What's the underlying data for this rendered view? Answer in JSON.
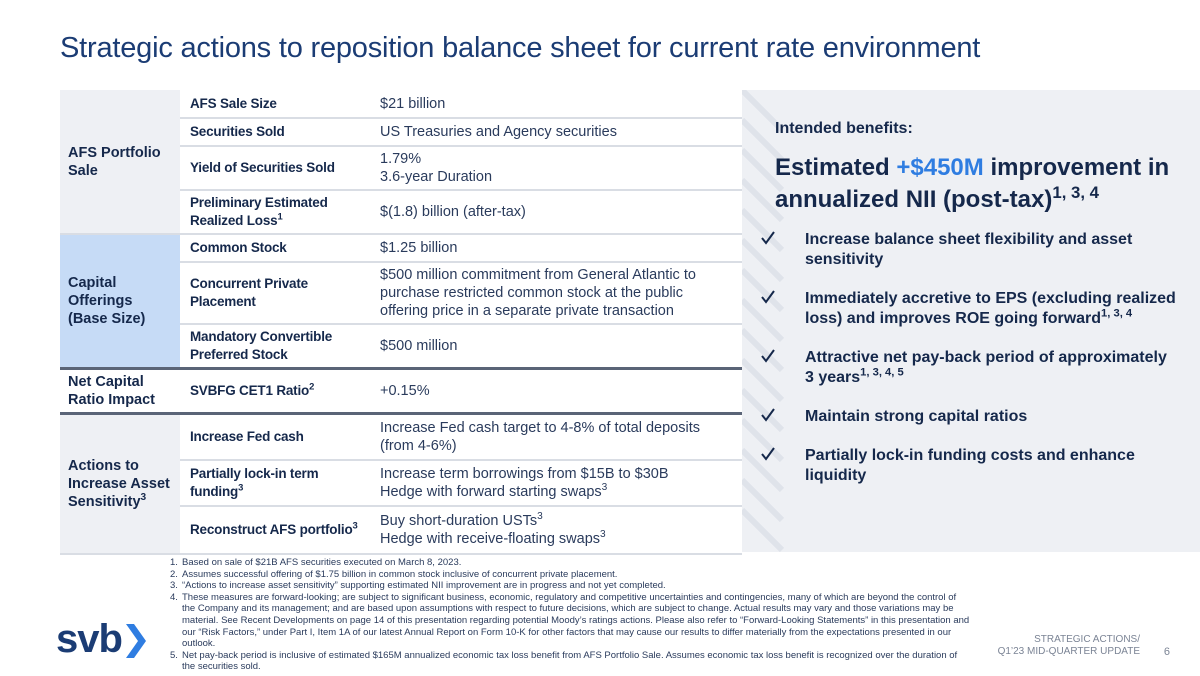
{
  "title": "Strategic actions to reposition balance sheet for current rate environment",
  "table": {
    "groups": [
      {
        "label": [
          {
            "text": "AFS Portfolio Sale"
          }
        ],
        "rows": [
          {
            "label": [
              {
                "text": "AFS Sale Size"
              }
            ],
            "value": [
              [
                {
                  "text": "$21 billion"
                }
              ]
            ]
          },
          {
            "label": [
              {
                "text": "Securities Sold"
              }
            ],
            "value": [
              [
                {
                  "text": "US Treasuries and Agency securities"
                }
              ]
            ]
          },
          {
            "label": [
              {
                "text": "Yield of Securities Sold"
              }
            ],
            "value": [
              [
                {
                  "text": "1.79%"
                }
              ],
              [
                {
                  "text": "3.6-year Duration"
                }
              ]
            ]
          },
          {
            "label": [
              {
                "text": "Preliminary Estimated Realized Loss"
              },
              {
                "sup": "1"
              }
            ],
            "value": [
              [
                {
                  "text": "$(1.8) billion (after-tax)"
                }
              ]
            ]
          }
        ]
      },
      {
        "label": [
          {
            "text": "Capital Offerings (Base Size)"
          }
        ],
        "rows": [
          {
            "label": [
              {
                "text": "Common Stock"
              }
            ],
            "value": [
              [
                {
                  "text": "$1.25 billion"
                }
              ]
            ]
          },
          {
            "label": [
              {
                "text": "Concurrent Private Placement"
              }
            ],
            "value": [
              [
                {
                  "text": "$500 million commitment from General Atlantic to purchase restricted common stock at the public offering price in a separate private transaction"
                }
              ]
            ]
          },
          {
            "label": [
              {
                "text": "Mandatory Convertible Preferred Stock"
              }
            ],
            "value": [
              [
                {
                  "text": "$500 million"
                }
              ]
            ]
          }
        ]
      },
      {
        "label": [
          {
            "text": "Net Capital Ratio Impact"
          }
        ],
        "rows": [
          {
            "label": [
              {
                "text": "SVBFG CET1 Ratio"
              },
              {
                "sup": "2"
              }
            ],
            "value": [
              [
                {
                  "text": "+0.15%"
                }
              ]
            ]
          }
        ]
      },
      {
        "label": [
          {
            "text": "Actions to Increase Asset Sensitivity"
          },
          {
            "sup": "3"
          }
        ],
        "rows": [
          {
            "label": [
              {
                "text": "Increase Fed cash"
              }
            ],
            "value": [
              [
                {
                  "text": "Increase Fed cash target to 4-8% of total deposits (from 4-6%)"
                }
              ]
            ]
          },
          {
            "label": [
              {
                "text": "Partially lock-in term funding"
              },
              {
                "sup": "3"
              }
            ],
            "value": [
              [
                {
                  "text": "Increase term borrowings from $15B to $30B"
                }
              ],
              [
                {
                  "text": "Hedge with forward starting swaps"
                },
                {
                  "sup": "3"
                }
              ]
            ]
          },
          {
            "label": [
              {
                "text": "Reconstruct AFS portfolio"
              },
              {
                "sup": "3"
              }
            ],
            "value": [
              [
                {
                  "text": "Buy short-duration USTs"
                },
                {
                  "sup": "3"
                }
              ],
              [
                {
                  "text": "Hedge with receive-floating swaps"
                },
                {
                  "sup": "3"
                }
              ]
            ]
          }
        ]
      }
    ]
  },
  "benefits": {
    "heading": "Intended benefits:",
    "headline": [
      {
        "text": "Estimated "
      },
      {
        "highlight": "+$450M"
      },
      {
        "text": " improvement in annualized NII (post-tax)"
      },
      {
        "sup": "1, 3, 4"
      }
    ],
    "bullets": [
      [
        {
          "text": "Increase balance sheet flexibility and asset sensitivity"
        }
      ],
      [
        {
          "text": "Immediately accretive to EPS (excluding realized loss) and improves ROE going forward"
        },
        {
          "sup": "1, 3, 4"
        }
      ],
      [
        {
          "text": "Attractive net pay-back period of approximately 3 years"
        },
        {
          "sup": "1, 3, 4, 5"
        }
      ],
      [
        {
          "text": "Maintain strong capital ratios"
        }
      ],
      [
        {
          "text": "Partially lock-in funding costs and enhance liquidity"
        }
      ]
    ]
  },
  "footnotes": [
    {
      "num": "1.",
      "text": "Based on sale of $21B AFS securities executed on March 8, 2023."
    },
    {
      "num": "2.",
      "text": "Assumes successful offering of $1.75 billion in common stock inclusive of concurrent private placement."
    },
    {
      "num": "3.",
      "text": "“Actions to increase asset sensitivity” supporting estimated NII improvement are in progress and not yet completed."
    },
    {
      "num": "4.",
      "text": "These measures are forward-looking; are subject to significant business, economic, regulatory and competitive uncertainties and contingencies, many of which are beyond the control of the Company and its management; and are based upon assumptions with respect to future decisions, which are subject to change. Actual results may vary and those variations may be material. See Recent Developments on page 14 of this presentation regarding potential Moody’s ratings actions.  Please also refer to “Forward-Looking Statements” in this presentation and our “Risk Factors,” under Part I, Item 1A of our latest Annual Report on Form 10-K for other factors that may cause our results to differ materially from the expectations presented in our outlook."
    },
    {
      "num": "5.",
      "text": "Net pay-back period is inclusive of estimated $165M annualized economic tax loss benefit from AFS Portfolio Sale.  Assumes economic tax loss benefit is recognized over the duration of the securities sold."
    }
  ],
  "footer": {
    "logo": "svb",
    "section": [
      "STRATEGIC ACTIONS/",
      "Q1’23 MID-QUARTER UPDATE"
    ],
    "page": "6"
  }
}
